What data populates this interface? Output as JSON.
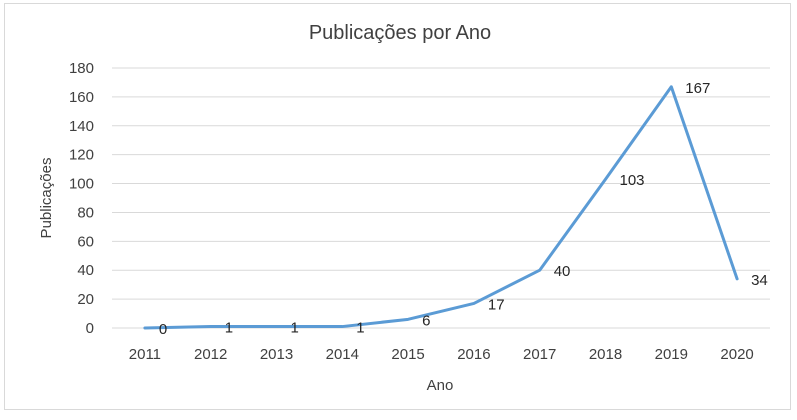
{
  "chart_data": {
    "type": "line",
    "title": "Publicações por Ano",
    "xlabel": "Ano",
    "ylabel": "Publicações",
    "ylim": [
      0,
      180
    ],
    "yticks": [
      0,
      20,
      40,
      60,
      80,
      100,
      120,
      140,
      160,
      180
    ],
    "categories": [
      "2011",
      "2012",
      "2013",
      "2014",
      "2015",
      "2016",
      "2017",
      "2018",
      "2019",
      "2020"
    ],
    "series": [
      {
        "values": [
          0,
          1,
          1,
          1,
          6,
          17,
          40,
          103,
          167,
          34
        ],
        "color": "#5b9bd5"
      }
    ],
    "data_labels": [
      "0",
      "1",
      "1",
      "1",
      "6",
      "17",
      "40",
      "103",
      "167",
      "34"
    ],
    "grid": true,
    "legend": "none"
  }
}
